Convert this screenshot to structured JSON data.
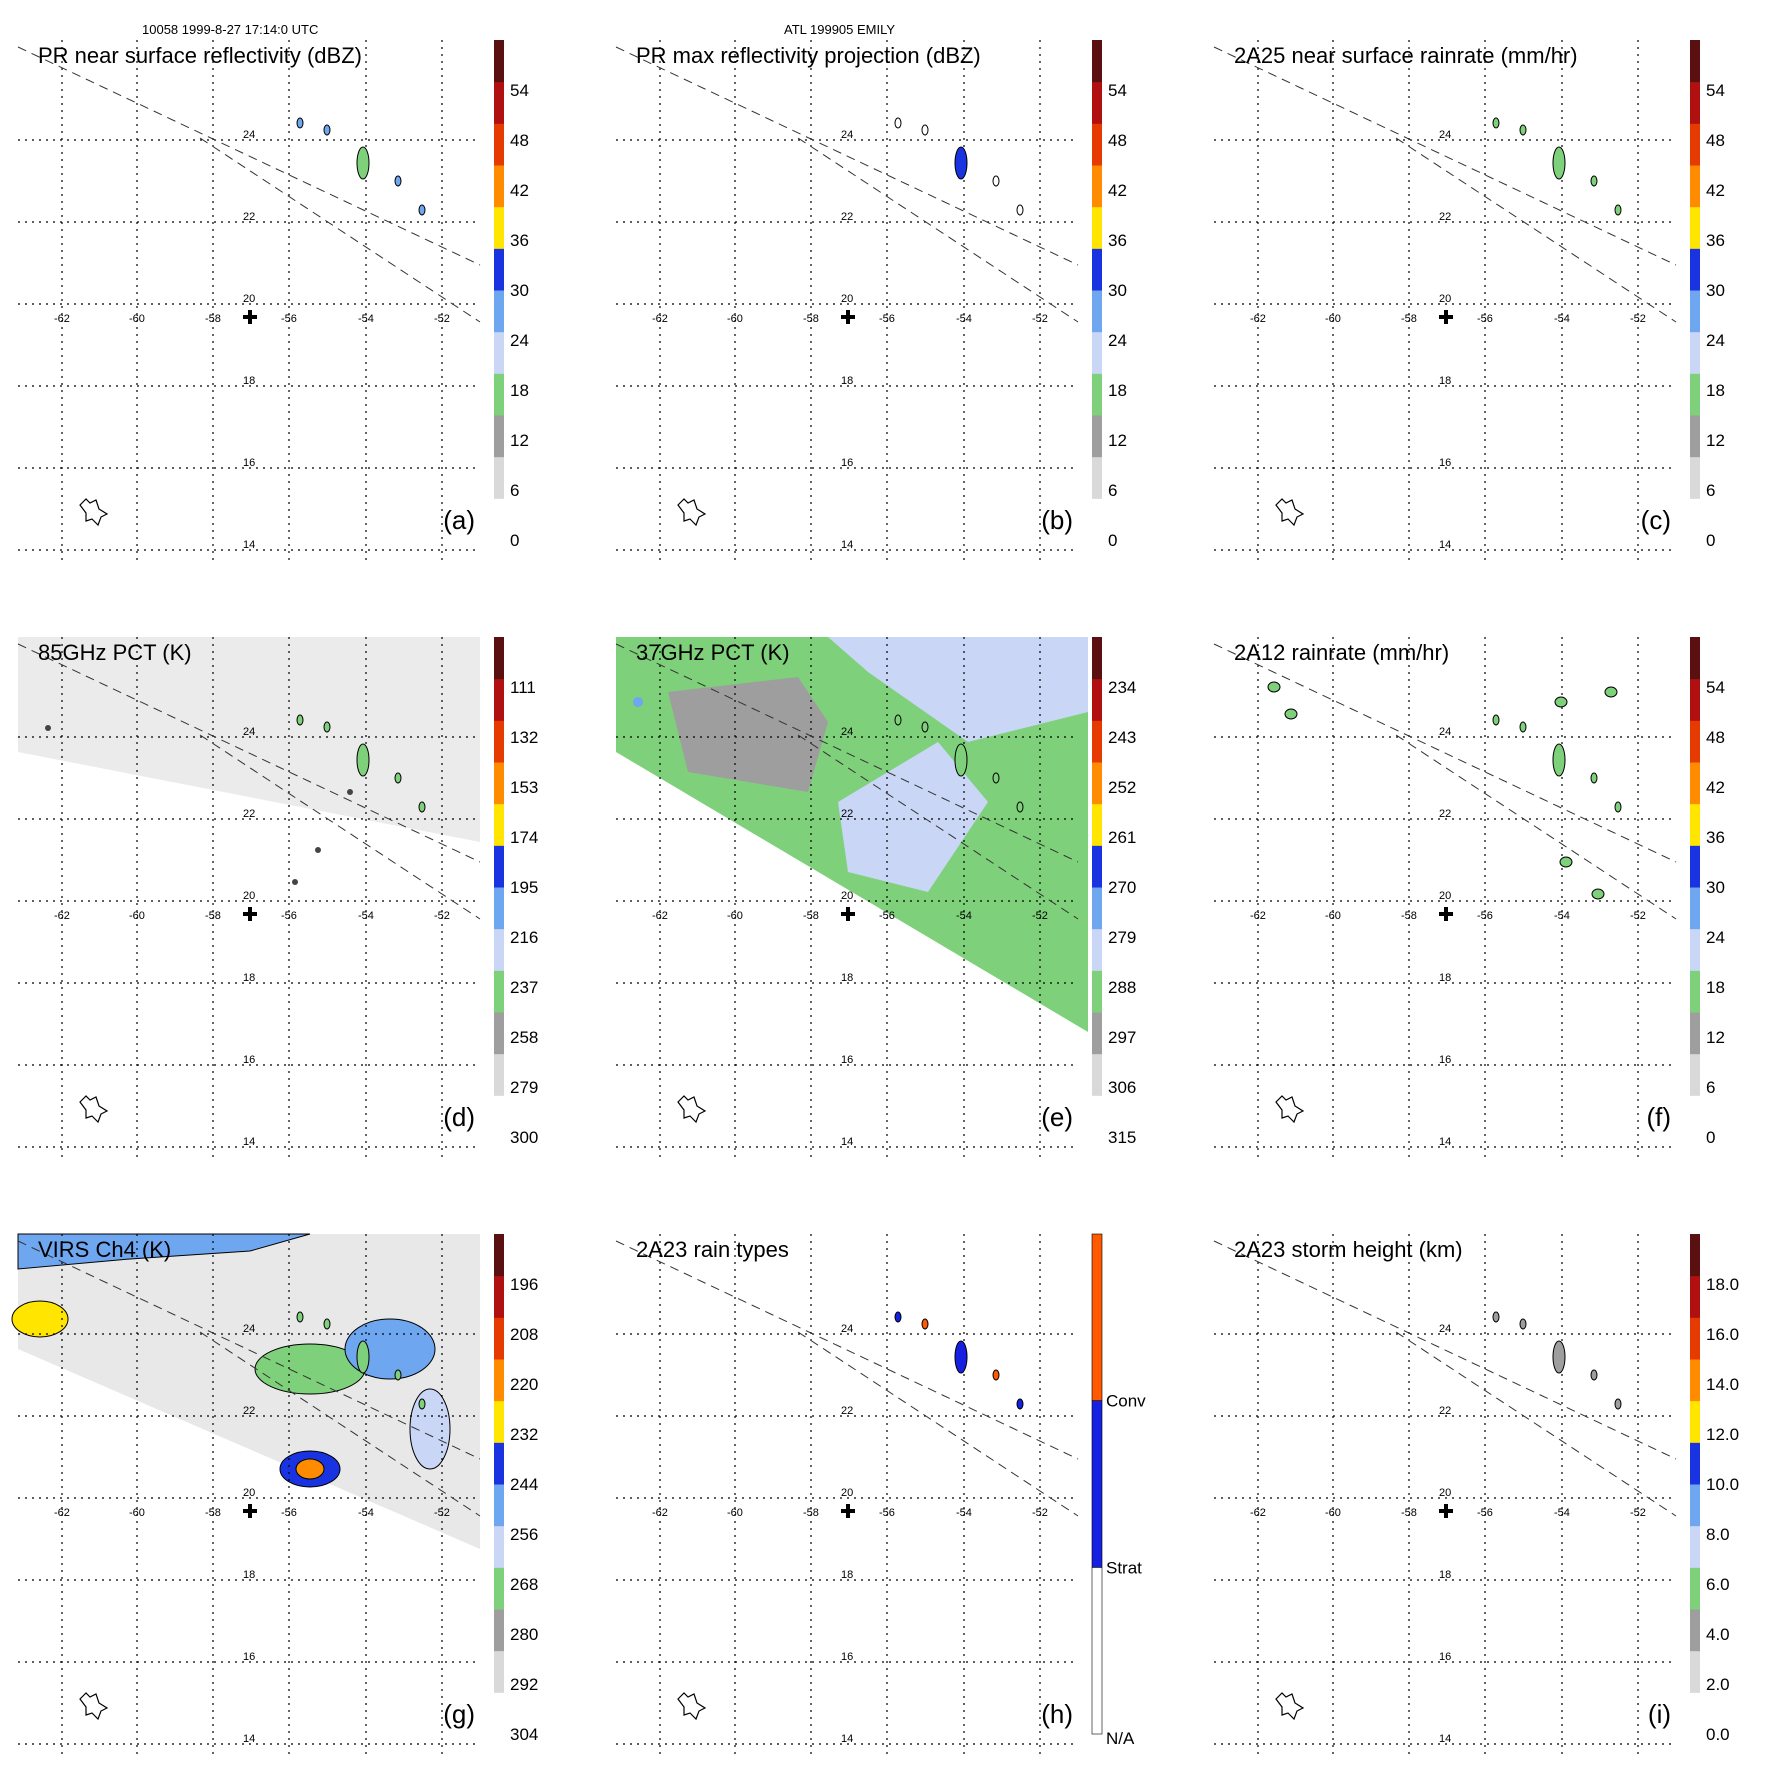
{
  "header": {
    "orbit_time": "10058 1999-8-27 17:14:0 UTC",
    "storm": "ATL 199905 EMILY"
  },
  "map": {
    "lon_labels": [
      "-62",
      "-60",
      "-58",
      "-56",
      "-54",
      "-52"
    ],
    "lat_labels": [
      "24",
      "22",
      "20",
      "18",
      "16",
      "14"
    ],
    "center_marker": "plus-icon",
    "island_icon": "island-outline-icon"
  },
  "panels": [
    {
      "id": "a",
      "title": "PR near surface reflectivity (dBZ)",
      "label": "(a)",
      "colorbar": [
        "0",
        "6",
        "12",
        "18",
        "24",
        "30",
        "36",
        "42",
        "48",
        "54"
      ],
      "background": "none",
      "swath": "pr"
    },
    {
      "id": "b",
      "title": "PR max reflectivity projection (dBZ)",
      "label": "(b)",
      "colorbar": [
        "0",
        "6",
        "12",
        "18",
        "24",
        "30",
        "36",
        "42",
        "48",
        "54"
      ],
      "background": "none",
      "swath": "pr"
    },
    {
      "id": "c",
      "title": "2A25 near surface rainrate (mm/hr)",
      "label": "(c)",
      "colorbar": [
        "0",
        "6",
        "12",
        "18",
        "24",
        "30",
        "36",
        "42",
        "48",
        "54"
      ],
      "background": "none",
      "swath": "pr"
    },
    {
      "id": "d",
      "title": "85GHz PCT (K)",
      "label": "(d)",
      "colorbar": [
        "300",
        "279",
        "258",
        "237",
        "216",
        "195",
        "174",
        "153",
        "132",
        "111"
      ],
      "background": "tmi-gray",
      "swath": "pr"
    },
    {
      "id": "e",
      "title": "37GHz PCT (K)",
      "label": "(e)",
      "colorbar": [
        "315",
        "306",
        "297",
        "288",
        "279",
        "270",
        "261",
        "252",
        "243",
        "234"
      ],
      "background": "tmi-color",
      "swath": "pr"
    },
    {
      "id": "f",
      "title": "2A12 rainrate (mm/hr)",
      "label": "(f)",
      "colorbar": [
        "0",
        "6",
        "12",
        "18",
        "24",
        "30",
        "36",
        "42",
        "48",
        "54"
      ],
      "background": "none",
      "swath": "pr"
    },
    {
      "id": "g",
      "title": "VIRS Ch4 (K)",
      "label": "(g)",
      "colorbar": [
        "304",
        "292",
        "280",
        "268",
        "256",
        "244",
        "232",
        "220",
        "208",
        "196"
      ],
      "background": "virs",
      "swath": "pr"
    },
    {
      "id": "h",
      "title": "2A23 rain types",
      "label": "(h)",
      "colorbar": [
        "N/A",
        "Strat",
        "Conv"
      ],
      "background": "none",
      "swath": "pr"
    },
    {
      "id": "i",
      "title": "2A23 storm height (km)",
      "label": "(i)",
      "colorbar": [
        "0.0",
        "2.0",
        "4.0",
        "6.0",
        "8.0",
        "10.0",
        "12.0",
        "14.0",
        "16.0",
        "18.0"
      ],
      "background": "none",
      "swath": "pr"
    }
  ],
  "colors": {
    "scale": [
      "#ffffff",
      "#d9d9d9",
      "#9e9e9e",
      "#7fd07a",
      "#c9d6f5",
      "#6ea6f0",
      "#1a33e0",
      "#ffe500",
      "#ff8c00",
      "#e53a00",
      "#b01010",
      "#5a1010"
    ],
    "rain_conv": "#ff5a00",
    "rain_strat": "#1520e0"
  }
}
